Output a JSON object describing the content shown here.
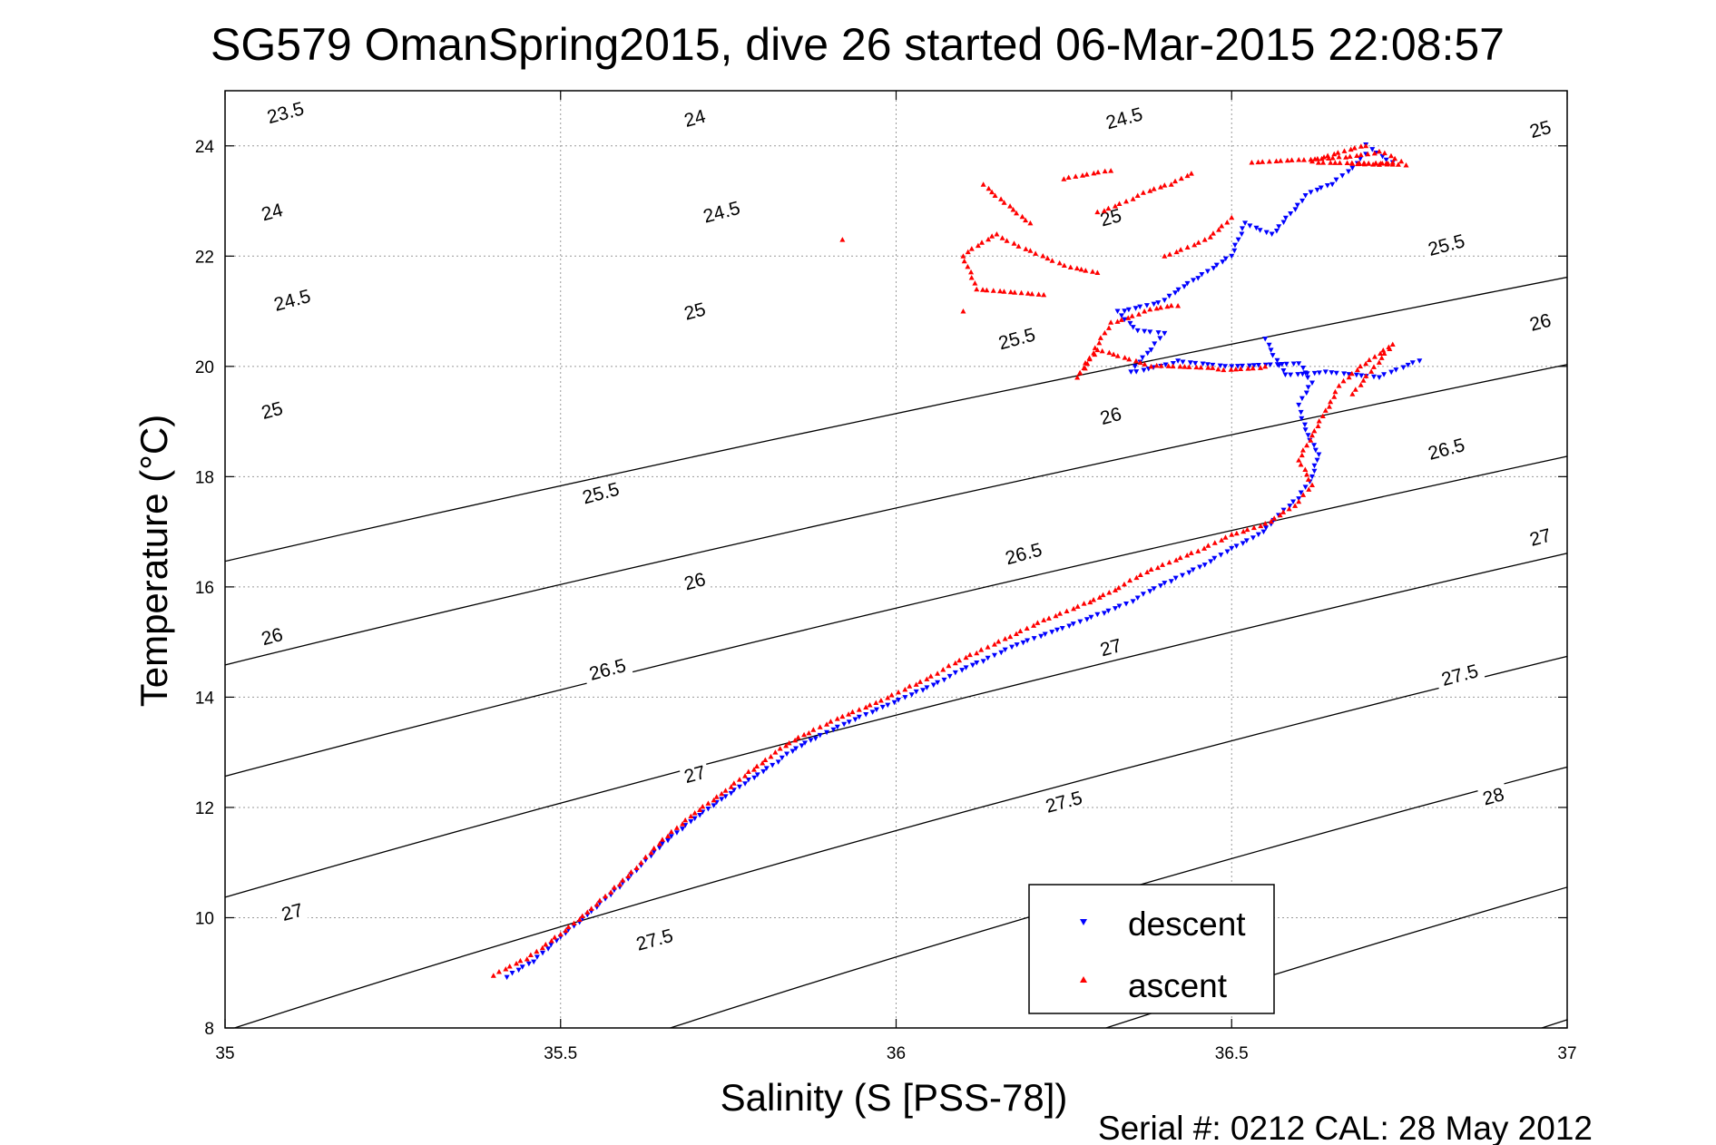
{
  "chart_data": {
    "type": "scatter",
    "title": "SG579 OmanSpring2015, dive 26 started 06-Mar-2015 22:08:57",
    "xlabel": "Salinity (S [PSS-78])",
    "ylabel": "Temperature (°C)",
    "footer": "Serial #: 0212  CAL: 28 May 2012",
    "xlim": [
      35,
      37
    ],
    "ylim": [
      8,
      25
    ],
    "xticks": [
      35,
      35.5,
      36,
      36.5,
      37
    ],
    "xtick_labels": [
      "35",
      "35.5",
      "36",
      "36.5",
      "37"
    ],
    "yticks": [
      8,
      10,
      12,
      14,
      16,
      18,
      20,
      22,
      24
    ],
    "ytick_labels": [
      "8",
      "10",
      "12",
      "14",
      "16",
      "18",
      "20",
      "22",
      "24"
    ],
    "grid": true,
    "legend_position": "bottom-right",
    "density_isopycnals": {
      "levels": [
        23.5,
        24,
        24.5,
        25,
        25.5,
        26,
        26.5,
        27,
        27.5,
        28
      ],
      "color": "#000000",
      "label_positions": [
        {
          "text": "23.5",
          "x": 35.09,
          "y": 24.6
        },
        {
          "text": "24",
          "x": 35.07,
          "y": 22.8
        },
        {
          "text": "24",
          "x": 35.7,
          "y": 24.5
        },
        {
          "text": "24.5",
          "x": 35.1,
          "y": 21.2
        },
        {
          "text": "24.5",
          "x": 35.74,
          "y": 22.8
        },
        {
          "text": "24.5",
          "x": 36.34,
          "y": 24.5
        },
        {
          "text": "25",
          "x": 35.07,
          "y": 19.2
        },
        {
          "text": "25",
          "x": 35.7,
          "y": 21.0
        },
        {
          "text": "25",
          "x": 36.32,
          "y": 22.7
        },
        {
          "text": "25",
          "x": 36.96,
          "y": 24.3
        },
        {
          "text": "25.5",
          "x": 35.56,
          "y": 17.7
        },
        {
          "text": "25.5",
          "x": 36.18,
          "y": 20.5
        },
        {
          "text": "25.5",
          "x": 36.82,
          "y": 22.2
        },
        {
          "text": "26",
          "x": 35.07,
          "y": 15.1
        },
        {
          "text": "26",
          "x": 35.7,
          "y": 16.1
        },
        {
          "text": "26",
          "x": 36.32,
          "y": 19.1
        },
        {
          "text": "26",
          "x": 36.96,
          "y": 20.8
        },
        {
          "text": "26.5",
          "x": 35.57,
          "y": 14.5
        },
        {
          "text": "26.5",
          "x": 36.19,
          "y": 16.6
        },
        {
          "text": "26.5",
          "x": 36.82,
          "y": 18.5
        },
        {
          "text": "27",
          "x": 35.1,
          "y": 10.1
        },
        {
          "text": "27",
          "x": 35.7,
          "y": 12.6
        },
        {
          "text": "27",
          "x": 36.32,
          "y": 14.9
        },
        {
          "text": "27",
          "x": 36.96,
          "y": 16.9
        },
        {
          "text": "27.5",
          "x": 35.64,
          "y": 9.6
        },
        {
          "text": "27.5",
          "x": 36.25,
          "y": 12.1
        },
        {
          "text": "27.5",
          "x": 36.84,
          "y": 14.4
        },
        {
          "text": "28",
          "x": 36.89,
          "y": 12.2
        }
      ]
    },
    "series": [
      {
        "name": "descent",
        "color": "#0000ff",
        "marker": "triangle-down",
        "points": [
          [
            35.42,
            8.92
          ],
          [
            35.46,
            9.2
          ],
          [
            35.5,
            9.65
          ],
          [
            35.54,
            10.05
          ],
          [
            35.58,
            10.5
          ],
          [
            35.62,
            10.95
          ],
          [
            35.66,
            11.4
          ],
          [
            35.7,
            11.8
          ],
          [
            35.74,
            12.15
          ],
          [
            35.78,
            12.5
          ],
          [
            35.83,
            12.9
          ],
          [
            35.88,
            13.25
          ],
          [
            35.93,
            13.55
          ],
          [
            35.98,
            13.82
          ],
          [
            36.03,
            14.1
          ],
          [
            36.08,
            14.38
          ],
          [
            36.13,
            14.65
          ],
          [
            36.18,
            14.95
          ],
          [
            36.24,
            15.22
          ],
          [
            36.3,
            15.5
          ],
          [
            36.36,
            15.8
          ],
          [
            36.41,
            16.1
          ],
          [
            36.46,
            16.4
          ],
          [
            36.5,
            16.7
          ],
          [
            36.54,
            16.95
          ],
          [
            36.57,
            17.3
          ],
          [
            36.6,
            17.6
          ],
          [
            36.62,
            18.0
          ],
          [
            36.63,
            18.4
          ],
          [
            36.61,
            18.85
          ],
          [
            36.6,
            19.3
          ],
          [
            36.62,
            19.7
          ],
          [
            36.6,
            20.05
          ],
          [
            36.5,
            20.0
          ],
          [
            36.42,
            20.1
          ],
          [
            36.35,
            19.9
          ],
          [
            36.38,
            20.3
          ],
          [
            36.4,
            20.6
          ],
          [
            36.36,
            20.65
          ],
          [
            36.33,
            21.0
          ],
          [
            36.4,
            21.2
          ],
          [
            36.45,
            21.6
          ],
          [
            36.5,
            22.0
          ],
          [
            36.52,
            22.6
          ],
          [
            36.56,
            22.4
          ],
          [
            36.61,
            23.1
          ],
          [
            36.65,
            23.3
          ],
          [
            36.68,
            23.6
          ],
          [
            36.7,
            23.85
          ],
          [
            36.7,
            24.02
          ],
          [
            36.74,
            23.7
          ],
          [
            36.78,
            20.1
          ],
          [
            36.72,
            19.8
          ],
          [
            36.64,
            19.9
          ],
          [
            36.58,
            19.85
          ],
          [
            36.55,
            20.5
          ]
        ]
      },
      {
        "name": "ascent",
        "color": "#ff0000",
        "marker": "triangle-up",
        "points": [
          [
            35.4,
            8.95
          ],
          [
            35.45,
            9.25
          ],
          [
            35.5,
            9.7
          ],
          [
            35.54,
            10.1
          ],
          [
            35.58,
            10.55
          ],
          [
            35.62,
            11.0
          ],
          [
            35.66,
            11.48
          ],
          [
            35.7,
            11.9
          ],
          [
            35.74,
            12.25
          ],
          [
            35.78,
            12.65
          ],
          [
            35.82,
            13.0
          ],
          [
            35.87,
            13.35
          ],
          [
            35.92,
            13.65
          ],
          [
            35.97,
            13.9
          ],
          [
            36.02,
            14.2
          ],
          [
            36.07,
            14.5
          ],
          [
            36.12,
            14.8
          ],
          [
            36.17,
            15.1
          ],
          [
            36.22,
            15.4
          ],
          [
            36.28,
            15.7
          ],
          [
            36.34,
            16.05
          ],
          [
            36.39,
            16.35
          ],
          [
            36.45,
            16.65
          ],
          [
            36.5,
            16.95
          ],
          [
            36.55,
            17.15
          ],
          [
            36.6,
            17.55
          ],
          [
            36.62,
            17.85
          ],
          [
            36.6,
            18.3
          ],
          [
            36.62,
            18.75
          ],
          [
            36.64,
            19.2
          ],
          [
            36.66,
            19.65
          ],
          [
            36.7,
            20.05
          ],
          [
            36.74,
            20.4
          ],
          [
            36.68,
            19.5
          ],
          [
            36.55,
            20.0
          ],
          [
            36.48,
            19.95
          ],
          [
            36.38,
            20.0
          ],
          [
            36.3,
            20.3
          ],
          [
            36.27,
            19.8
          ],
          [
            36.32,
            20.8
          ],
          [
            36.37,
            21.0
          ],
          [
            36.42,
            21.1
          ],
          [
            36.3,
            21.7
          ],
          [
            36.26,
            21.8
          ],
          [
            36.2,
            22.1
          ],
          [
            36.15,
            22.4
          ],
          [
            36.1,
            22.0
          ],
          [
            36.12,
            21.4
          ],
          [
            36.22,
            21.3
          ],
          [
            36.3,
            22.8
          ],
          [
            36.36,
            23.1
          ],
          [
            36.41,
            23.3
          ],
          [
            36.44,
            23.5
          ],
          [
            36.4,
            22.0
          ],
          [
            36.46,
            22.3
          ],
          [
            36.5,
            22.7
          ],
          [
            36.25,
            23.4
          ],
          [
            36.32,
            23.55
          ],
          [
            36.2,
            22.6
          ],
          [
            36.13,
            23.3
          ],
          [
            35.92,
            22.3
          ],
          [
            36.1,
            21.0
          ],
          [
            36.53,
            23.7
          ],
          [
            36.6,
            23.75
          ],
          [
            36.66,
            23.8
          ],
          [
            36.72,
            23.9
          ],
          [
            36.76,
            23.65
          ],
          [
            36.72,
            23.66
          ],
          [
            36.68,
            23.68
          ],
          [
            36.74,
            23.7
          ],
          [
            36.62,
            23.72
          ],
          [
            36.7,
            24.0
          ]
        ]
      }
    ]
  },
  "legend": {
    "items": [
      {
        "label": "descent",
        "color": "#0000ff"
      },
      {
        "label": "ascent",
        "color": "#ff0000"
      }
    ]
  }
}
